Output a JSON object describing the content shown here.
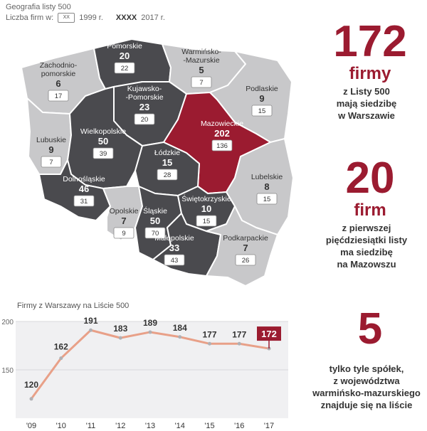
{
  "header": {
    "title": "Geografia listy 500",
    "legend_label": "Liczba firm w:",
    "legend_box_sample": "XX",
    "legend_year_1999": "1999 r.",
    "legend_bold_sample": "XXXX",
    "legend_year_2017": "2017 r."
  },
  "regions": [
    {
      "key": "zachodniopomorskie",
      "name1": "Zachodnio-",
      "name2": "pomorskie",
      "v2017": "6",
      "v1999": "17",
      "shade": "light"
    },
    {
      "key": "pomorskie",
      "name1": "Pomorskie",
      "name2": "",
      "v2017": "20",
      "v1999": "22",
      "shade": "dark"
    },
    {
      "key": "warminsko",
      "name1": "Warmińsko-",
      "name2": "-Mazurskie",
      "v2017": "5",
      "v1999": "7",
      "shade": "light"
    },
    {
      "key": "podlaskie",
      "name1": "Podlaskie",
      "name2": "",
      "v2017": "9",
      "v1999": "15",
      "shade": "light"
    },
    {
      "key": "kujawsko",
      "name1": "Kujawsko-",
      "name2": "-Pomorskie",
      "v2017": "23",
      "v1999": "20",
      "shade": "dark"
    },
    {
      "key": "mazowieckie",
      "name1": "Mazowieckie",
      "name2": "",
      "v2017": "202",
      "v1999": "136",
      "shade": "red"
    },
    {
      "key": "lubuskie",
      "name1": "Lubuskie",
      "name2": "",
      "v2017": "9",
      "v1999": "7",
      "shade": "light"
    },
    {
      "key": "wielkopolskie",
      "name1": "Wielkopolskie",
      "name2": "",
      "v2017": "50",
      "v1999": "39",
      "shade": "dark"
    },
    {
      "key": "lodzkie",
      "name1": "Łódzkie",
      "name2": "",
      "v2017": "15",
      "v1999": "28",
      "shade": "dark"
    },
    {
      "key": "lubelskie",
      "name1": "Lubelskie",
      "name2": "",
      "v2017": "8",
      "v1999": "15",
      "shade": "light"
    },
    {
      "key": "dolnoslaskie",
      "name1": "Dolnośląskie",
      "name2": "",
      "v2017": "46",
      "v1999": "31",
      "shade": "dark"
    },
    {
      "key": "opolskie",
      "name1": "Opolskie",
      "name2": "",
      "v2017": "7",
      "v1999": "9",
      "shade": "light"
    },
    {
      "key": "slaskie",
      "name1": "Śląskie",
      "name2": "",
      "v2017": "50",
      "v1999": "70",
      "shade": "dark"
    },
    {
      "key": "swietokrzyskie",
      "name1": "Świętokrzyskie",
      "name2": "",
      "v2017": "10",
      "v1999": "15",
      "shade": "dark"
    },
    {
      "key": "malopolskie",
      "name1": "Małopolskie",
      "name2": "",
      "v2017": "33",
      "v1999": "43",
      "shade": "dark"
    },
    {
      "key": "podkarpackie",
      "name1": "Podkarpackie",
      "name2": "",
      "v2017": "7",
      "v1999": "26",
      "shade": "light"
    }
  ],
  "stats": [
    {
      "number": "172",
      "unit": "firmy",
      "lines": [
        "z Listy 500",
        "mają siedzibę",
        "w Warszawie"
      ]
    },
    {
      "number": "20",
      "unit": "firm",
      "lines": [
        "z pierwszej",
        "pięćdziesiątki listy",
        "ma siedzibę",
        "na Mazowszu"
      ]
    },
    {
      "number": "5",
      "unit": "",
      "lines": [
        "tylko tyle spółek,",
        "z województwa",
        "warmińsko-mazurskiego",
        "znajduje się na  liście"
      ]
    }
  ],
  "colors": {
    "dark": "#4a4a4e",
    "light": "#c8c8ca",
    "red": "#9b1b30",
    "line": "#e8a088",
    "accent": "#9b1b30"
  },
  "chart_data": {
    "type": "line",
    "title": "Firmy z Warszawy na Liście 500",
    "categories": [
      "'09",
      "'10",
      "'11",
      "'12",
      "'13",
      "'14",
      "'15",
      "'16",
      "'17"
    ],
    "values": [
      120,
      162,
      191,
      183,
      189,
      184,
      177,
      177,
      172
    ],
    "ylim": [
      100,
      200
    ],
    "yticks": [
      150,
      200
    ],
    "grid": true
  }
}
